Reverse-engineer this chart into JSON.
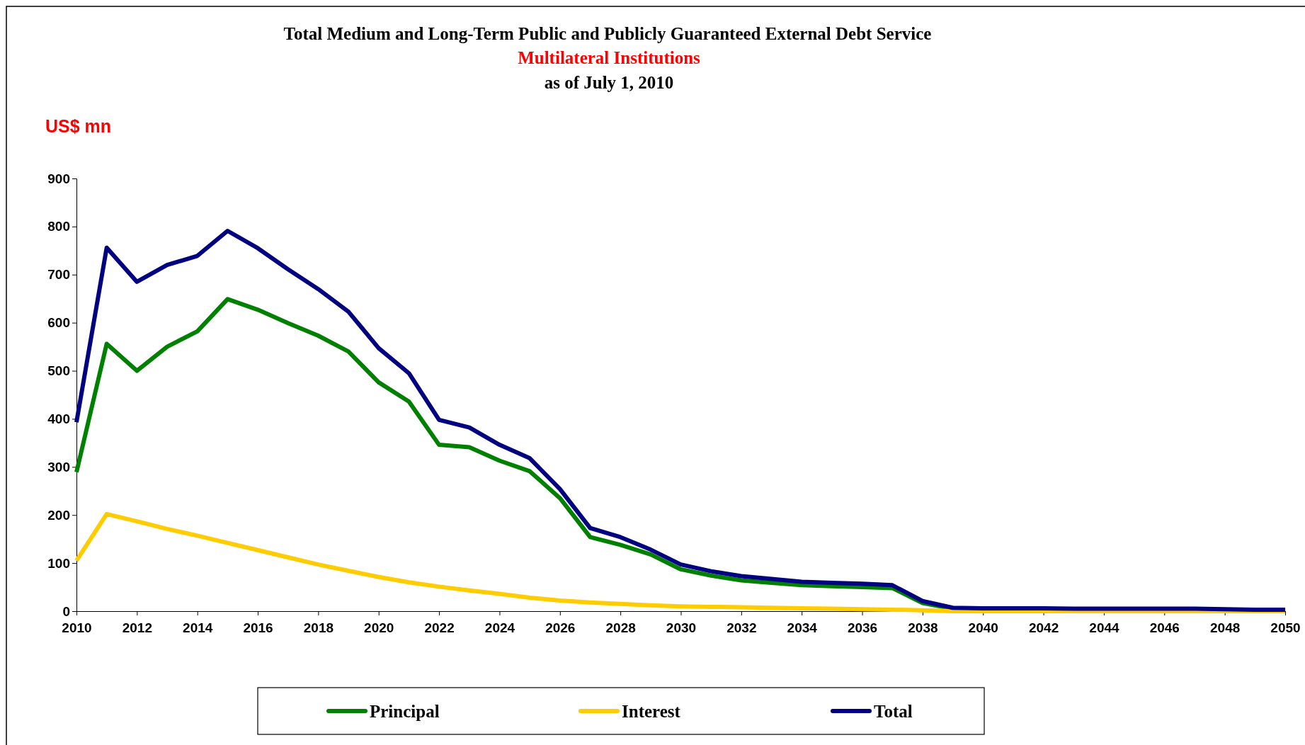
{
  "chart_data": {
    "type": "line",
    "title": "Total Medium and Long-Term Public and Publicly Guaranteed External Debt Service",
    "subtitle": "Multilateral Institutions",
    "annotations": [
      "as of July 1, 2010"
    ],
    "ylabel": "US$ mn",
    "x": [
      2010,
      2011,
      2012,
      2013,
      2014,
      2015,
      2016,
      2017,
      2018,
      2019,
      2020,
      2021,
      2022,
      2023,
      2024,
      2025,
      2026,
      2027,
      2028,
      2029,
      2030,
      2031,
      2032,
      2033,
      2034,
      2035,
      2036,
      2037,
      2038,
      2039,
      2040,
      2041,
      2042,
      2043,
      2044,
      2045,
      2046,
      2047,
      2048,
      2049,
      2050
    ],
    "series": [
      {
        "name": "Principal",
        "color": "#008000",
        "values": [
          289,
          556,
          500,
          550,
          582,
          649,
          627,
          599,
          573,
          540,
          476,
          436,
          346,
          341,
          313,
          291,
          235,
          154,
          138,
          118,
          87,
          74,
          64,
          59,
          54,
          52,
          50,
          48,
          17,
          5,
          6,
          null,
          null,
          null,
          null,
          null,
          null,
          null,
          null,
          null,
          null
        ]
      },
      {
        "name": "Interest",
        "color": "#ffcc00",
        "values": [
          105,
          202,
          187,
          171,
          157,
          142,
          127,
          112,
          97,
          84,
          71,
          60,
          51,
          43,
          36,
          28,
          22,
          18,
          15,
          12,
          10,
          9,
          8,
          7,
          6,
          5,
          4,
          3,
          2,
          0,
          0,
          0,
          0,
          0,
          0,
          0,
          0,
          0,
          0,
          0,
          0
        ]
      },
      {
        "name": "Total",
        "color": "#000080",
        "values": [
          393,
          756,
          685,
          720,
          739,
          791,
          755,
          711,
          670,
          623,
          547,
          495,
          398,
          382,
          346,
          318,
          254,
          173,
          154,
          128,
          97,
          83,
          73,
          67,
          61,
          59,
          57,
          54,
          21,
          7,
          6,
          6,
          6,
          5,
          5,
          5,
          5,
          5,
          4,
          3,
          3
        ]
      }
    ],
    "xlim": [
      2010,
      2050
    ],
    "xticks": [
      2010,
      2012,
      2014,
      2016,
      2018,
      2020,
      2022,
      2024,
      2026,
      2028,
      2030,
      2032,
      2034,
      2036,
      2038,
      2040,
      2042,
      2044,
      2046,
      2048,
      2050
    ],
    "ylim": [
      0,
      900
    ],
    "yticks": [
      0,
      100,
      200,
      300,
      400,
      500,
      600,
      700,
      800,
      900
    ],
    "grid": false,
    "legend": "bottom",
    "marker": "none",
    "line_style": "solid"
  }
}
